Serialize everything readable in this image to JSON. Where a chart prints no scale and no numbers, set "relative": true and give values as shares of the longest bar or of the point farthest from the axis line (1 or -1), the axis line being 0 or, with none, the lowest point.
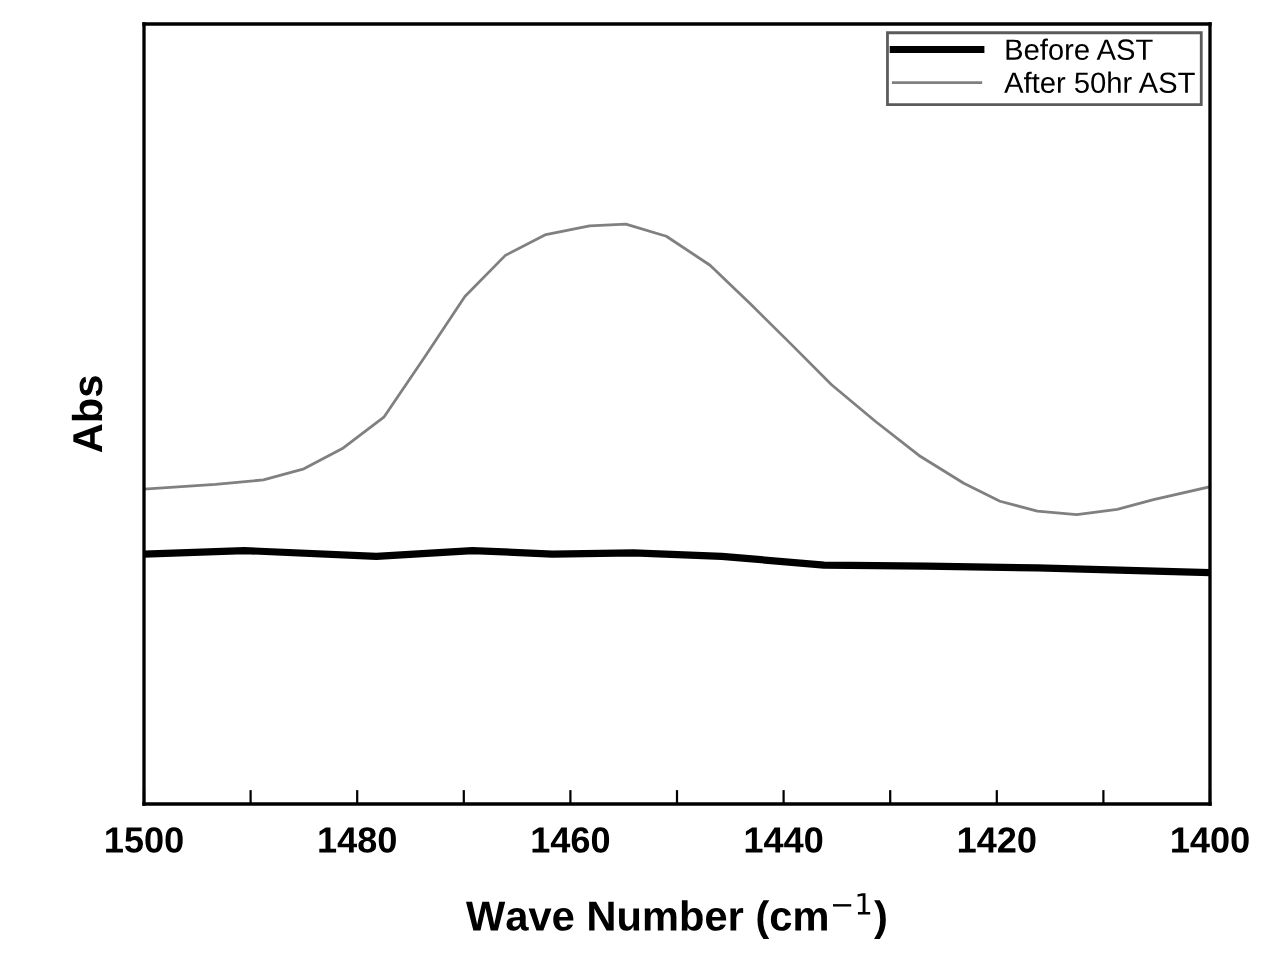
{
  "chart_data": {
    "type": "line",
    "relative": true,
    "xlabel": "Wave Number (cm$^{−1}$)",
    "ylabel": "Abs",
    "xlim": [
      1500,
      1400
    ],
    "xticks": [
      1500,
      {
        "value": 1490,
        "label": null
      },
      1480,
      {
        "value": 1470,
        "label": null
      },
      1460,
      {
        "value": 1450,
        "label": null
      },
      1440,
      {
        "value": 1430,
        "label": null
      },
      1420,
      {
        "value": 1410,
        "label": null
      },
      1400
    ],
    "tick_labels": "x",
    "legend": "top right",
    "grid": false,
    "marker": "none",
    "line_style": "solid",
    "series": [
      {
        "name": "Before AST",
        "color": "#000000",
        "x": [
          1500,
          1490.6,
          1478.2,
          1469.2,
          1461.7,
          1454.1,
          1445.8,
          1436.2,
          1426.6,
          1416.2,
          1400
        ],
        "values": [
          0.431,
          0.437,
          0.427,
          0.437,
          0.431,
          0.433,
          0.427,
          0.412,
          0.41,
          0.407,
          0.399
        ]
      },
      {
        "name": "After 50hr AST",
        "color": "#808080",
        "x": [
          1500,
          1493.3,
          1488.8,
          1485.0,
          1481.3,
          1477.5,
          1473.7,
          1469.9,
          1466.1,
          1462.3,
          1458.2,
          1454.8,
          1451.0,
          1446.9,
          1443.1,
          1439.3,
          1435.5,
          1431.4,
          1427.3,
          1423.1,
          1419.7,
          1416.2,
          1412.5,
          1408.7,
          1405.3,
          1400
        ],
        "values": [
          0.543,
          0.551,
          0.559,
          0.578,
          0.614,
          0.667,
          0.77,
          0.875,
          0.946,
          0.982,
          0.997,
          1.0,
          0.979,
          0.929,
          0.862,
          0.793,
          0.723,
          0.66,
          0.601,
          0.553,
          0.522,
          0.505,
          0.499,
          0.508,
          0.525,
          0.547
        ]
      }
    ]
  }
}
